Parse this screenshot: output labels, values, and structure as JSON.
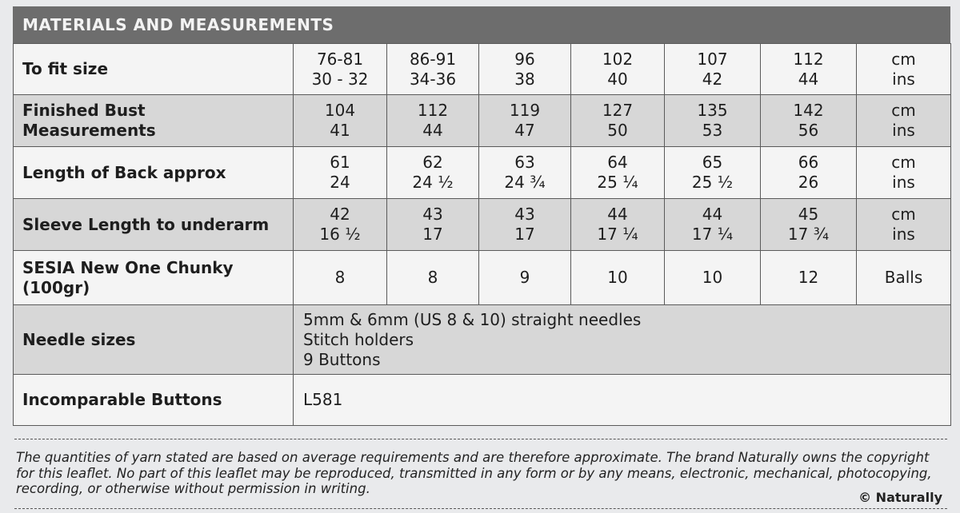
{
  "title": "MATERIALS AND MEASUREMENTS",
  "rows": [
    {
      "label": [
        "To fit size"
      ],
      "values": [
        [
          "76-81",
          "30 - 32"
        ],
        [
          "86-91",
          "34-36"
        ],
        [
          "96",
          "38"
        ],
        [
          "102",
          "40"
        ],
        [
          "107",
          "42"
        ],
        [
          "112",
          "44"
        ]
      ],
      "unit": [
        "cm",
        "ins"
      ]
    },
    {
      "label": [
        "Finished Bust",
        "Measurements"
      ],
      "values": [
        [
          "104",
          "41"
        ],
        [
          "112",
          "44"
        ],
        [
          "119",
          "47"
        ],
        [
          "127",
          "50"
        ],
        [
          "135",
          "53"
        ],
        [
          "142",
          "56"
        ]
      ],
      "unit": [
        "cm",
        "ins"
      ]
    },
    {
      "label": [
        "Length of Back approx"
      ],
      "values": [
        [
          "61",
          "24"
        ],
        [
          "62",
          "24 ½"
        ],
        [
          "63",
          "24 ¾"
        ],
        [
          "64",
          "25 ¼"
        ],
        [
          "65",
          "25 ½"
        ],
        [
          "66",
          "26"
        ]
      ],
      "unit": [
        "cm",
        "ins"
      ]
    },
    {
      "label": [
        "Sleeve Length to underarm"
      ],
      "values": [
        [
          "42",
          "16 ½"
        ],
        [
          "43",
          "17"
        ],
        [
          "43",
          "17"
        ],
        [
          "44",
          "17 ¼"
        ],
        [
          "44",
          "17 ¼"
        ],
        [
          "45",
          "17 ¾"
        ]
      ],
      "unit": [
        "cm",
        "ins"
      ]
    },
    {
      "label": [
        "SESIA New One Chunky",
        "(100gr)"
      ],
      "values": [
        [
          "8"
        ],
        [
          "8"
        ],
        [
          "9"
        ],
        [
          "10"
        ],
        [
          "10"
        ],
        [
          "12"
        ]
      ],
      "unit": [
        "Balls"
      ]
    }
  ],
  "needles": {
    "label": "Needle sizes",
    "lines": [
      "5mm & 6mm (US 8 & 10) straight needles",
      "Stitch holders",
      "9 Buttons"
    ]
  },
  "buttons": {
    "label": "Incomparable Buttons",
    "value": "L581"
  },
  "footer": {
    "line1": "The quantities of yarn stated are based on average requirements and are therefore approximate. The brand Naturally owns the copyright",
    "line2": "for this leaflet. No part of this leaflet may be reproduced, transmitted in any form or by any means, electronic, mechanical, photocopying,",
    "line3": "recording, or otherwise without permission in writing.",
    "copyright": "© Naturally"
  }
}
